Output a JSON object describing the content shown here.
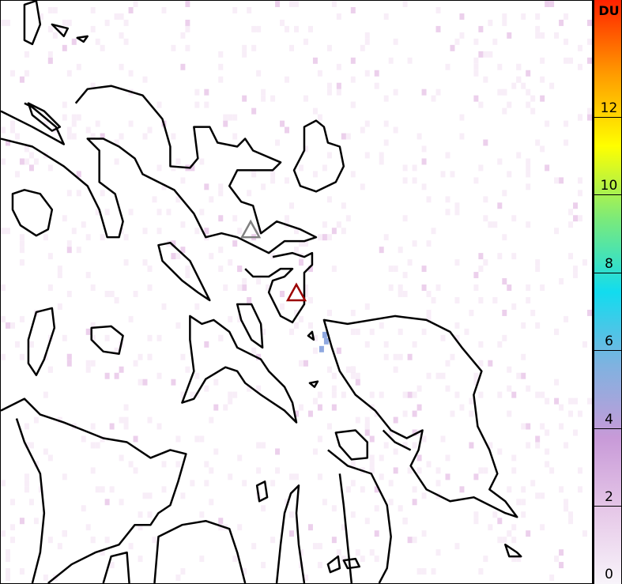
{
  "colorbar": {
    "unit": "DU",
    "min": 0,
    "max": 15,
    "ticks": [
      0,
      2,
      4,
      6,
      8,
      10,
      12
    ],
    "colors": [
      "#f8f4fa",
      "#e6c8e8",
      "#c89ad8",
      "#7fb2e0",
      "#12dcef",
      "#7bea7a",
      "#ffff00",
      "#ff9900",
      "#ff2200"
    ]
  },
  "markers": [
    {
      "name": "volcano-gray",
      "color": "#808080"
    },
    {
      "name": "volcano-red",
      "color": "#9b0000"
    }
  ],
  "coastline_color": "#000000"
}
